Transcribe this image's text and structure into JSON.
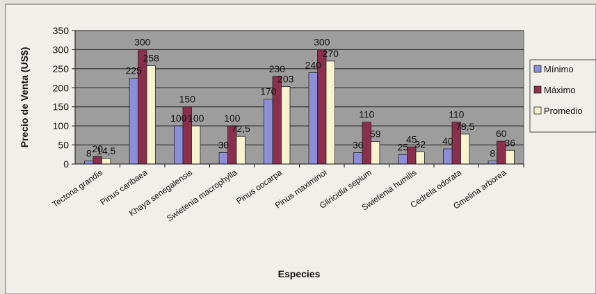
{
  "chart_data": {
    "type": "bar",
    "title": "",
    "xlabel": "Especies",
    "ylabel": "Precio de Venta (US$)",
    "ylim": [
      0,
      350
    ],
    "yticks": [
      0,
      50,
      100,
      150,
      200,
      250,
      300,
      350
    ],
    "grid": true,
    "legend_position": "right",
    "categories": [
      "Tectona grandis",
      "Pinus caribaea",
      "Khaya senegalensis",
      "Swietenia macrophylla",
      "Pinus oocarpa",
      "Pinus maximinoi",
      "Gliricidia sepium",
      "Swietenia humilis",
      "Cedrela odorata",
      "Gmelina arborea"
    ],
    "series": [
      {
        "name": "Mínimo",
        "color": "#8c8fd8",
        "values": [
          8,
          225,
          100,
          30,
          170,
          240,
          30,
          25,
          40,
          8
        ],
        "labels": [
          "8",
          "225",
          "100",
          "30",
          "170",
          "240",
          "30",
          "25",
          "40",
          "8"
        ]
      },
      {
        "name": "Máximo",
        "color": "#8a2f4e",
        "values": [
          20,
          300,
          150,
          100,
          230,
          300,
          110,
          45,
          110,
          60
        ],
        "labels": [
          "20",
          "300",
          "150",
          "100",
          "230",
          "300",
          "110",
          "45",
          "110",
          "60"
        ]
      },
      {
        "name": "Promedio",
        "color": "#f7f3cf",
        "values": [
          14.5,
          258,
          100,
          72.5,
          203,
          270,
          59,
          32,
          78.5,
          36
        ],
        "labels": [
          "14,5",
          "258",
          "100",
          "72,5",
          "203",
          "270",
          "59",
          "32",
          "78,5",
          "36"
        ]
      }
    ]
  }
}
